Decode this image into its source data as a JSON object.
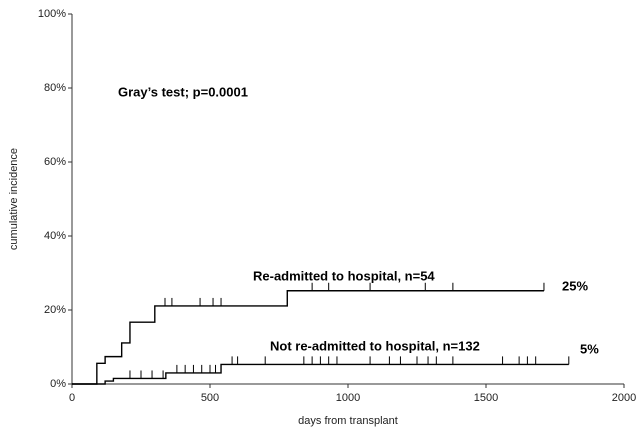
{
  "chart_data": {
    "type": "step",
    "xlabel": "days from transplant",
    "ylabel": "cumulative incidence",
    "xlim": [
      0,
      2000
    ],
    "xticks": [
      0,
      500,
      1000,
      1500,
      2000
    ],
    "ylim": [
      0,
      100
    ],
    "yticks": [
      {
        "value": 0,
        "label": "0%"
      },
      {
        "value": 20,
        "label": "20%"
      },
      {
        "value": 40,
        "label": "40%"
      },
      {
        "value": 60,
        "label": "60%"
      },
      {
        "value": 80,
        "label": "80%"
      },
      {
        "value": 100,
        "label": "100%"
      }
    ],
    "annotation": "Gray’s test; p=0.0001",
    "series": [
      {
        "name": "Re-admitted to hospital, n=54",
        "color": "#000000",
        "end_label": "25%",
        "x": [
          0,
          90,
          120,
          180,
          210,
          300,
          780,
          1710
        ],
        "values": [
          0,
          5.6,
          7.4,
          11.1,
          16.7,
          21.1,
          25.2,
          25.2
        ],
        "censor_x": [
          337,
          362,
          464,
          511,
          540,
          870,
          930,
          1080,
          1280,
          1380,
          1710
        ]
      },
      {
        "name": "Not re-admitted to hospital, n=132",
        "color": "#000000",
        "end_label": "5%",
        "x": [
          0,
          120,
          150,
          340,
          540,
          1800
        ],
        "values": [
          0,
          0.8,
          1.5,
          3.0,
          5.3,
          5.3
        ],
        "censor_x": [
          210,
          250,
          290,
          330,
          380,
          410,
          440,
          470,
          500,
          520,
          580,
          600,
          700,
          840,
          870,
          900,
          930,
          960,
          1080,
          1150,
          1190,
          1250,
          1290,
          1320,
          1380,
          1560,
          1620,
          1650,
          1680,
          1800
        ]
      }
    ]
  }
}
